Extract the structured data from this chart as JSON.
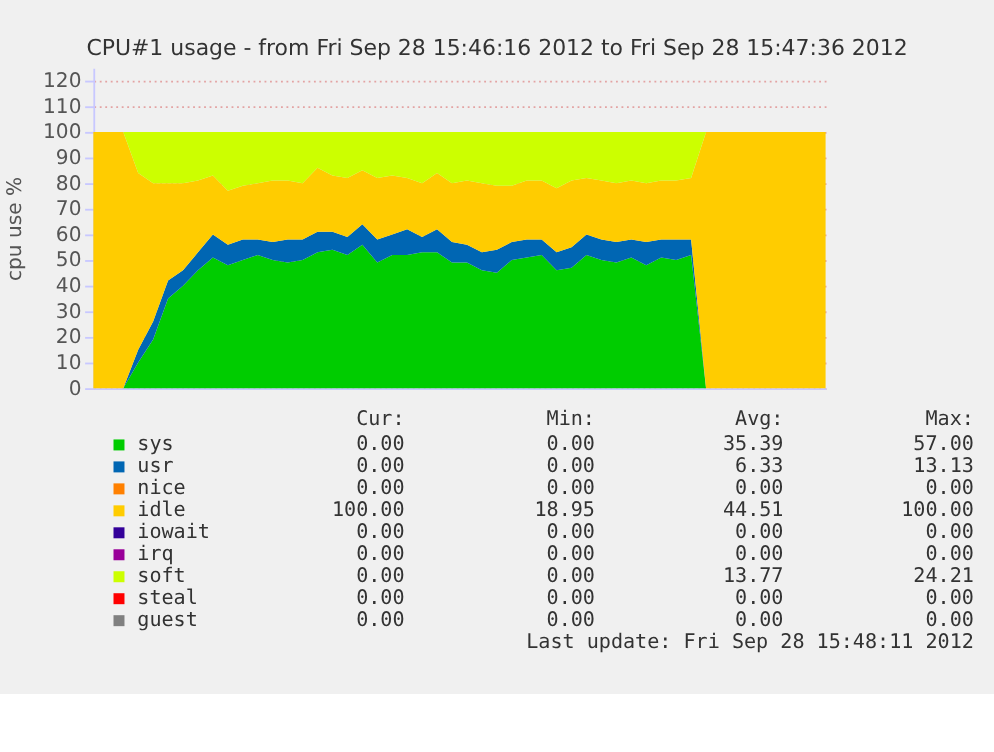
{
  "chart_data": {
    "type": "area",
    "stacked": true,
    "title": "CPU#1 usage - from Fri Sep 28 15:46:16 2012 to Fri Sep 28 15:47:36 2012",
    "ylabel": "cpu use %",
    "categories": [
      null,
      null,
      null,
      null,
      null,
      null,
      null,
      null,
      null,
      null,
      null,
      null,
      null,
      null,
      null,
      null,
      null,
      null,
      null,
      null,
      null,
      null,
      null,
      null,
      null,
      null,
      null,
      null,
      null,
      null,
      null,
      null,
      null,
      null,
      null,
      null,
      null,
      null,
      null,
      null,
      null,
      null,
      null,
      null,
      null,
      null,
      null,
      null,
      null,
      null
    ],
    "series": [
      {
        "name": "sys",
        "color": "#00cc00",
        "values": [
          0,
          0,
          0,
          10,
          19,
          35,
          40,
          46,
          51,
          48,
          50,
          52,
          50,
          49,
          50,
          53,
          54,
          52,
          56,
          49,
          52,
          52,
          53,
          53,
          49,
          49,
          46,
          45,
          50,
          51,
          52,
          46,
          47,
          52,
          50,
          49,
          51,
          48,
          51,
          50,
          52,
          0,
          0,
          0,
          0,
          0,
          0,
          0,
          0,
          0
        ]
      },
      {
        "name": "usr",
        "color": "#0066b3",
        "values": [
          0,
          0,
          0,
          5,
          7,
          7,
          6,
          7,
          9,
          8,
          8,
          6,
          7,
          9,
          8,
          8,
          7,
          7,
          8,
          9,
          8,
          10,
          6,
          9,
          8,
          7,
          7,
          9,
          7,
          7,
          6,
          7,
          8,
          8,
          8,
          8,
          7,
          9,
          7,
          8,
          6,
          0,
          0,
          0,
          0,
          0,
          0,
          0,
          0,
          0
        ]
      },
      {
        "name": "nice",
        "color": "#ff8000",
        "values": [
          null,
          null,
          null,
          null,
          null,
          null,
          null,
          null,
          null,
          null,
          null,
          null,
          null,
          null,
          null,
          null,
          null,
          null,
          null,
          null,
          null,
          null,
          null,
          null,
          null,
          null,
          null,
          null,
          null,
          null,
          null,
          null,
          null,
          null,
          null,
          null,
          null,
          null,
          null,
          null,
          null,
          null,
          null,
          null,
          null,
          null,
          null,
          null,
          null,
          null
        ]
      },
      {
        "name": "idle",
        "color": "#ffcc00",
        "values": [
          100,
          100,
          100,
          69,
          54,
          38,
          34,
          28,
          23,
          21,
          21,
          22,
          24,
          23,
          22,
          25,
          22,
          23,
          21,
          24,
          23,
          20,
          21,
          22,
          23,
          25,
          27,
          25,
          22,
          23,
          23,
          25,
          26,
          22,
          23,
          23,
          23,
          23,
          23,
          23,
          24,
          100,
          100,
          100,
          100,
          100,
          100,
          100,
          100,
          100
        ]
      },
      {
        "name": "iowait",
        "color": "#330099",
        "values": [
          null,
          null,
          null,
          null,
          null,
          null,
          null,
          null,
          null,
          null,
          null,
          null,
          null,
          null,
          null,
          null,
          null,
          null,
          null,
          null,
          null,
          null,
          null,
          null,
          null,
          null,
          null,
          null,
          null,
          null,
          null,
          null,
          null,
          null,
          null,
          null,
          null,
          null,
          null,
          null,
          null,
          null,
          null,
          null,
          null,
          null,
          null,
          null,
          null,
          null
        ]
      },
      {
        "name": "irq",
        "color": "#990099",
        "values": [
          null,
          null,
          null,
          null,
          null,
          null,
          null,
          null,
          null,
          null,
          null,
          null,
          null,
          null,
          null,
          null,
          null,
          null,
          null,
          null,
          null,
          null,
          null,
          null,
          null,
          null,
          null,
          null,
          null,
          null,
          null,
          null,
          null,
          null,
          null,
          null,
          null,
          null,
          null,
          null,
          null,
          null,
          null,
          null,
          null,
          null,
          null,
          null,
          null,
          null
        ]
      },
      {
        "name": "soft",
        "color": "#ccff00",
        "values": [
          0,
          0,
          0,
          16,
          20,
          20,
          20,
          19,
          17,
          23,
          21,
          20,
          19,
          19,
          20,
          14,
          17,
          18,
          15,
          18,
          17,
          18,
          20,
          16,
          20,
          19,
          20,
          21,
          21,
          19,
          19,
          22,
          19,
          18,
          19,
          20,
          19,
          20,
          19,
          19,
          18,
          0,
          0,
          0,
          0,
          0,
          0,
          0,
          0,
          0
        ]
      },
      {
        "name": "steal",
        "color": "#ff0000",
        "values": [
          null,
          null,
          null,
          null,
          null,
          null,
          null,
          null,
          null,
          null,
          null,
          null,
          null,
          null,
          null,
          null,
          null,
          null,
          null,
          null,
          null,
          null,
          null,
          null,
          null,
          null,
          null,
          null,
          null,
          null,
          null,
          null,
          null,
          null,
          null,
          null,
          null,
          null,
          null,
          null,
          null,
          null,
          null,
          null,
          null,
          null,
          null,
          null,
          null,
          null
        ]
      },
      {
        "name": "guest",
        "color": "#808080",
        "values": [
          null,
          null,
          null,
          null,
          null,
          null,
          null,
          null,
          null,
          null,
          null,
          null,
          null,
          null,
          null,
          null,
          null,
          null,
          null,
          null,
          null,
          null,
          null,
          null,
          null,
          null,
          null,
          null,
          null,
          null,
          null,
          null,
          null,
          null,
          null,
          null,
          null,
          null,
          null,
          null,
          null,
          null,
          null,
          null,
          null,
          null,
          null,
          null,
          null,
          null
        ]
      }
    ],
    "ylim": [
      0,
      125
    ],
    "yticks": [
      0,
      10,
      20,
      30,
      40,
      50,
      60,
      70,
      80,
      90,
      100,
      110,
      120
    ],
    "grid": "y",
    "legend": "bottom",
    "annotations": [
      "Cur:",
      "Min:",
      "Avg:",
      "Max:",
      "0.00",
      "0.00",
      "35.39",
      "57.00",
      "0.00",
      "0.00",
      "6.33",
      "13.13",
      "0.00",
      "0.00",
      "0.00",
      "0.00",
      "100.00",
      "18.95",
      "44.51",
      "100.00",
      "0.00",
      "0.00",
      "0.00",
      "0.00",
      "0.00",
      "0.00",
      "0.00",
      "0.00",
      "0.00",
      "0.00",
      "13.77",
      "24.21",
      "0.00",
      "0.00",
      "0.00",
      "0.00",
      "0.00",
      "0.00",
      "0.00",
      "0.00",
      "Last update: Fri Sep 28 15:48:11 2012"
    ]
  }
}
